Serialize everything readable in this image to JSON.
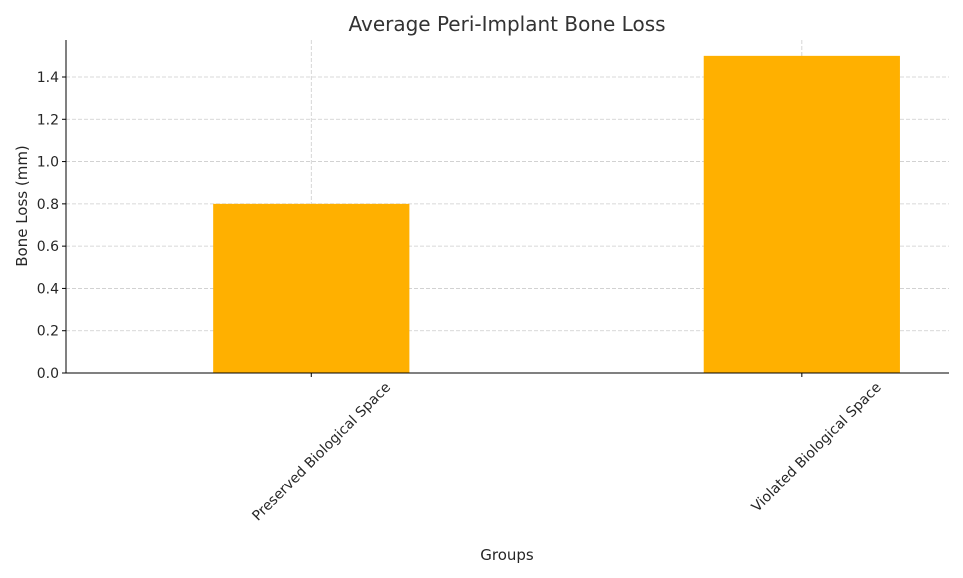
{
  "chart_data": {
    "type": "bar",
    "title": "Average Peri-Implant Bone Loss",
    "xlabel": "Groups",
    "ylabel": "Bone Loss (mm)",
    "categories": [
      "Preserved Biological Space",
      "Violated Biological Space"
    ],
    "values": [
      0.8,
      1.5
    ],
    "ylim": [
      0,
      1.575
    ],
    "yticks": [
      "0.0",
      "0.2",
      "0.4",
      "0.6",
      "0.8",
      "1.0",
      "1.2",
      "1.4"
    ],
    "bar_color": "#FFB000",
    "grid": true,
    "x_tick_rotation": "45°"
  }
}
